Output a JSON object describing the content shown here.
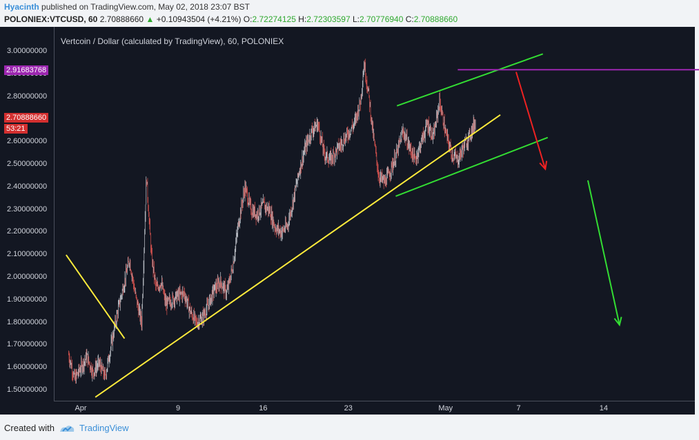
{
  "header": {
    "author": "Hyacinth",
    "published_text": "published on TradingView.com, May 02, 2018 23:07 BST",
    "symbol": "POLONIEX:VTCUSD, 60",
    "last": "2.70888660",
    "change": "+0.10943504 (+4.21%)",
    "o_label": "O:",
    "o": "2.72274125",
    "h_label": "H:",
    "h": "2.72303597",
    "l_label": "L:",
    "l": "2.70776940",
    "c_label": "C:",
    "c": "2.70888660"
  },
  "footer": {
    "created_with": "Created with",
    "brand": "TradingView"
  },
  "tags": {
    "purple_value": "2.91683768",
    "red_value": "2.70888660",
    "countdown": "53:21"
  },
  "chart_data": {
    "type": "candlestick",
    "title": "Vertcoin / Dollar (calculated by TradingView), 60, POLONIEX",
    "y_ticks": [
      "3.00000000",
      "2.90000000",
      "2.80000000",
      "2.70000000",
      "2.60000000",
      "2.50000000",
      "2.40000000",
      "2.30000000",
      "2.20000000",
      "2.10000000",
      "2.00000000",
      "1.90000000",
      "1.80000000",
      "1.70000000",
      "1.60000000",
      "1.50000000"
    ],
    "y_tick_values": [
      3.0,
      2.9,
      2.8,
      2.7,
      2.6,
      2.5,
      2.4,
      2.3,
      2.2,
      2.1,
      2.0,
      1.9,
      1.8,
      1.7,
      1.6,
      1.5
    ],
    "x_ticks": [
      {
        "label": "Apr",
        "day": 1
      },
      {
        "label": "9",
        "day": 9
      },
      {
        "label": "16",
        "day": 16
      },
      {
        "label": "23",
        "day": 23
      },
      {
        "label": "May",
        "day": 31
      },
      {
        "label": "7",
        "day": 37
      },
      {
        "label": "14",
        "day": 44
      }
    ],
    "ylim": [
      1.48,
      3.03
    ],
    "xlim": [
      0.0,
      52.2
    ],
    "price_path": [
      [
        0.0,
        1.66
      ],
      [
        0.5,
        1.55
      ],
      [
        1.0,
        1.6
      ],
      [
        1.5,
        1.65
      ],
      [
        2.0,
        1.58
      ],
      [
        2.5,
        1.62
      ],
      [
        3.0,
        1.56
      ],
      [
        3.5,
        1.7
      ],
      [
        4.0,
        1.84
      ],
      [
        4.5,
        1.96
      ],
      [
        5.0,
        2.08
      ],
      [
        5.5,
        1.92
      ],
      [
        6.0,
        1.8
      ],
      [
        6.4,
        2.45
      ],
      [
        6.8,
        2.1
      ],
      [
        7.2,
        1.95
      ],
      [
        7.6,
        1.98
      ],
      [
        8.0,
        1.88
      ],
      [
        8.5,
        1.9
      ],
      [
        9.0,
        1.92
      ],
      [
        9.5,
        1.93
      ],
      [
        10.0,
        1.85
      ],
      [
        10.5,
        1.8
      ],
      [
        11.0,
        1.82
      ],
      [
        11.5,
        1.88
      ],
      [
        12.0,
        1.95
      ],
      [
        12.5,
        1.98
      ],
      [
        13.0,
        1.93
      ],
      [
        13.5,
        2.05
      ],
      [
        14.0,
        2.25
      ],
      [
        14.5,
        2.4
      ],
      [
        15.0,
        2.3
      ],
      [
        15.5,
        2.28
      ],
      [
        16.0,
        2.32
      ],
      [
        16.5,
        2.3
      ],
      [
        17.0,
        2.22
      ],
      [
        17.5,
        2.2
      ],
      [
        18.0,
        2.23
      ],
      [
        18.5,
        2.35
      ],
      [
        19.0,
        2.48
      ],
      [
        19.5,
        2.58
      ],
      [
        20.0,
        2.65
      ],
      [
        20.5,
        2.68
      ],
      [
        21.0,
        2.55
      ],
      [
        21.5,
        2.52
      ],
      [
        22.0,
        2.56
      ],
      [
        22.5,
        2.6
      ],
      [
        23.0,
        2.64
      ],
      [
        23.5,
        2.68
      ],
      [
        24.0,
        2.78
      ],
      [
        24.3,
        2.95
      ],
      [
        24.7,
        2.8
      ],
      [
        25.0,
        2.65
      ],
      [
        25.5,
        2.45
      ],
      [
        26.0,
        2.42
      ],
      [
        26.5,
        2.48
      ],
      [
        27.0,
        2.55
      ],
      [
        27.5,
        2.65
      ],
      [
        28.0,
        2.58
      ],
      [
        28.5,
        2.52
      ],
      [
        29.0,
        2.6
      ],
      [
        29.5,
        2.68
      ],
      [
        30.0,
        2.62
      ],
      [
        30.5,
        2.78
      ],
      [
        31.0,
        2.64
      ],
      [
        31.5,
        2.55
      ],
      [
        32.0,
        2.52
      ],
      [
        32.5,
        2.58
      ],
      [
        33.0,
        2.63
      ],
      [
        33.5,
        2.7
      ]
    ],
    "drawings": [
      {
        "color": "#ffeb3b",
        "from": [
          -0.2,
          2.1
        ],
        "to": [
          4.6,
          1.73
        ]
      },
      {
        "color": "#ffeb3b",
        "from": [
          2.2,
          1.47
        ],
        "to": [
          35.5,
          2.72
        ]
      },
      {
        "color": "#33dd33",
        "from": [
          27.0,
          2.76
        ],
        "to": [
          39.0,
          2.99
        ]
      },
      {
        "color": "#33dd33",
        "from": [
          26.9,
          2.36
        ],
        "to": [
          39.4,
          2.62
        ]
      },
      {
        "color": "#9c27b0",
        "from": [
          32.0,
          2.92
        ],
        "to": [
          52.2,
          2.92
        ]
      },
      {
        "color": "#ee2222",
        "from": [
          36.8,
          2.91
        ],
        "to": [
          39.2,
          2.48
        ],
        "arrow": true
      },
      {
        "color": "#33dd33",
        "from": [
          42.7,
          2.43
        ],
        "to": [
          45.3,
          1.79
        ],
        "arrow": true
      }
    ]
  }
}
